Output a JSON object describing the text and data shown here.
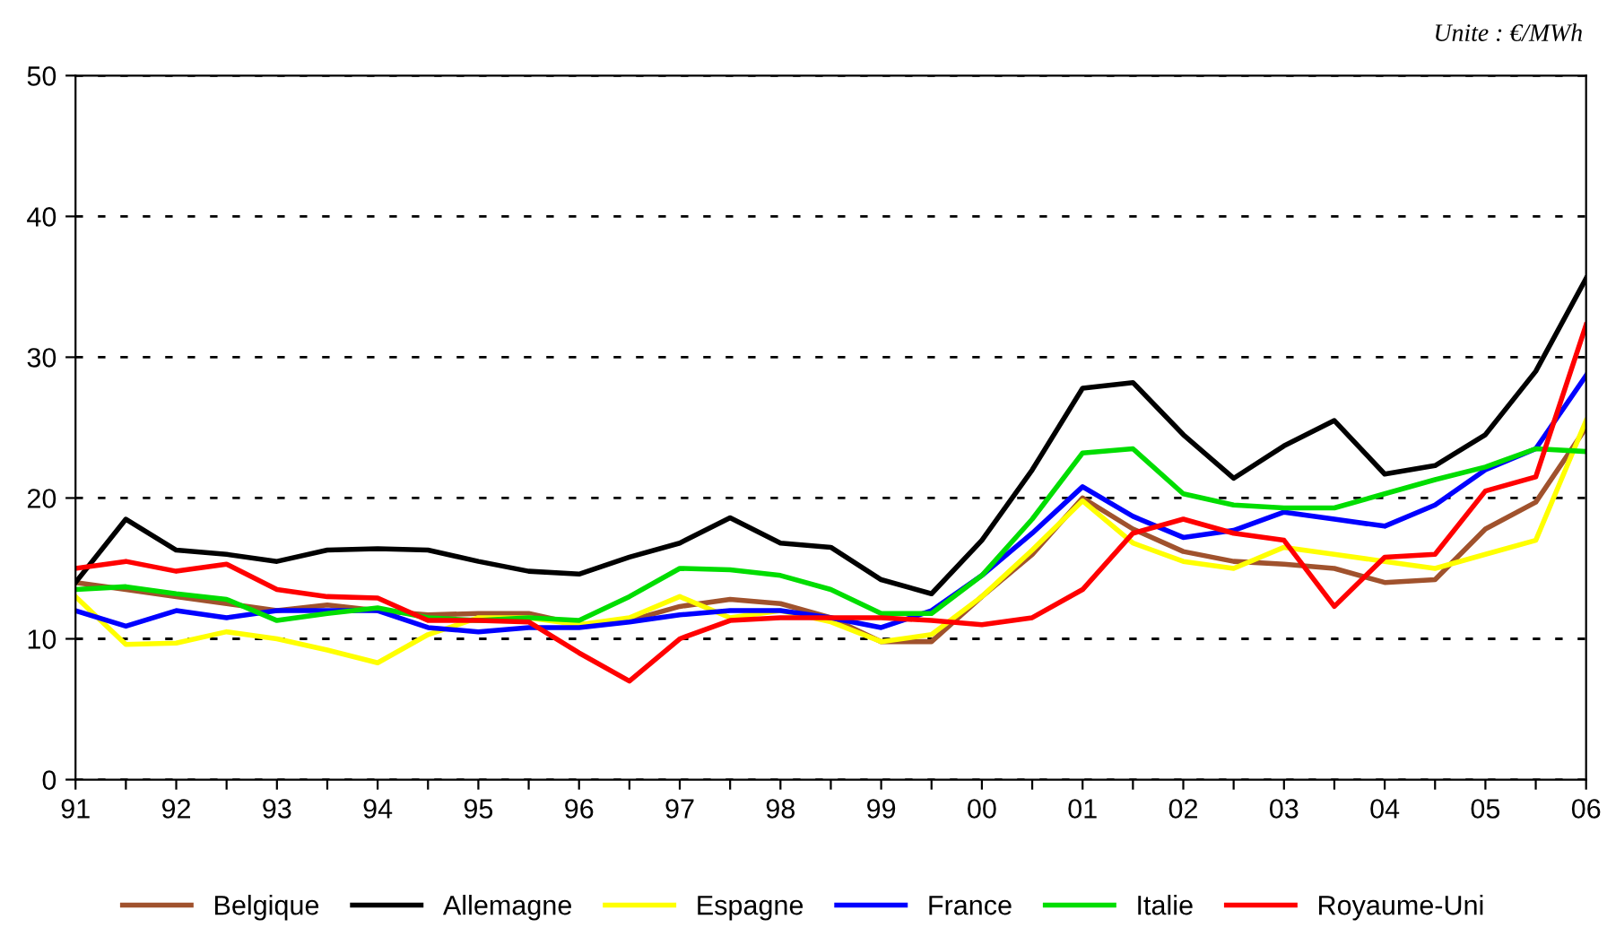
{
  "chart_data": {
    "type": "line",
    "annotations": [
      "Unite : €/MWh"
    ],
    "x": [
      1991,
      1991.5,
      1992,
      1992.5,
      1993,
      1993.5,
      1994,
      1994.5,
      1995,
      1995.5,
      1996,
      1996.5,
      1997,
      1997.5,
      1998,
      1998.5,
      1999,
      1999.5,
      2000,
      2000.5,
      2001,
      2001.5,
      2002,
      2002.5,
      2003,
      2003.5,
      2004,
      2004.5,
      2005,
      2005.5,
      2006
    ],
    "series": [
      {
        "name": "Belgique",
        "color": "#a0522d",
        "values": [
          14,
          13.5,
          13,
          12.5,
          12,
          12.4,
          12,
          11.7,
          11.8,
          11.8,
          11,
          11.3,
          12.3,
          12.8,
          12.5,
          11.5,
          9.8,
          9.8,
          13,
          16,
          20,
          17.8,
          16.2,
          15.5,
          15.3,
          15,
          14,
          14.2,
          17.8,
          19.7,
          25
        ]
      },
      {
        "name": "Allemagne",
        "color": "#000000",
        "values": [
          14,
          18.5,
          16.3,
          16,
          15.5,
          16.3,
          16.4,
          16.3,
          15.5,
          14.8,
          14.6,
          15.8,
          16.8,
          18.6,
          16.8,
          16.5,
          14.2,
          13.2,
          17,
          22,
          27.8,
          28.2,
          24.5,
          21.4,
          23.7,
          25.5,
          21.7,
          22.3,
          24.5,
          29,
          35.6
        ]
      },
      {
        "name": "Espagne",
        "color": "#ffff00",
        "values": [
          13,
          9.6,
          9.7,
          10.5,
          10,
          9.2,
          8.3,
          10.3,
          11.5,
          11.5,
          11,
          11.5,
          13,
          11.5,
          12,
          11.2,
          9.8,
          10.3,
          13,
          16.3,
          19.8,
          16.8,
          15.5,
          15,
          16.5,
          16,
          15.5,
          15,
          16,
          17,
          25.5
        ]
      },
      {
        "name": "France",
        "color": "#0000ff",
        "values": [
          12,
          10.9,
          12,
          11.5,
          12,
          12,
          12,
          10.8,
          10.5,
          10.8,
          10.8,
          11.2,
          11.7,
          12,
          12,
          11.5,
          10.8,
          12,
          14.5,
          17.5,
          20.8,
          18.7,
          17.2,
          17.7,
          19,
          18.5,
          18,
          19.5,
          22,
          23.5,
          28.7
        ]
      },
      {
        "name": "Italie",
        "color": "#00dd00",
        "values": [
          13.5,
          13.7,
          13.2,
          12.8,
          11.3,
          11.8,
          12.2,
          11.5,
          11.3,
          11.5,
          11.3,
          13,
          15,
          14.9,
          14.5,
          13.5,
          11.8,
          11.8,
          14.5,
          18.5,
          23.2,
          23.5,
          20.3,
          19.5,
          19.3,
          19.3,
          20.3,
          21.3,
          22.2,
          23.5,
          23.3
        ]
      },
      {
        "name": "Royaume-Uni",
        "color": "#ff0000",
        "values": [
          15,
          15.5,
          14.8,
          15.3,
          13.5,
          13,
          12.9,
          11.3,
          11.3,
          11.2,
          9,
          7,
          10,
          11.3,
          11.5,
          11.5,
          11.5,
          11.3,
          11,
          11.5,
          13.5,
          17.5,
          18.5,
          17.5,
          17,
          12.3,
          15.8,
          16,
          20.5,
          21.5,
          32.3
        ]
      }
    ],
    "xlim": [
      1991,
      2006
    ],
    "xticks": [
      {
        "value": 1991,
        "label": "91"
      },
      {
        "value": 1991.5,
        "label": null
      },
      {
        "value": 1992,
        "label": "92"
      },
      {
        "value": 1992.5,
        "label": null
      },
      {
        "value": 1993,
        "label": "93"
      },
      {
        "value": 1993.5,
        "label": null
      },
      {
        "value": 1994,
        "label": "94"
      },
      {
        "value": 1994.5,
        "label": null
      },
      {
        "value": 1995,
        "label": "95"
      },
      {
        "value": 1995.5,
        "label": null
      },
      {
        "value": 1996,
        "label": "96"
      },
      {
        "value": 1996.5,
        "label": null
      },
      {
        "value": 1997,
        "label": "97"
      },
      {
        "value": 1997.5,
        "label": null
      },
      {
        "value": 1998,
        "label": "98"
      },
      {
        "value": 1998.5,
        "label": null
      },
      {
        "value": 1999,
        "label": "99"
      },
      {
        "value": 1999.5,
        "label": null
      },
      {
        "value": 2000,
        "label": "00"
      },
      {
        "value": 2000.5,
        "label": null
      },
      {
        "value": 2001,
        "label": "01"
      },
      {
        "value": 2001.5,
        "label": null
      },
      {
        "value": 2002,
        "label": "02"
      },
      {
        "value": 2002.5,
        "label": null
      },
      {
        "value": 2003,
        "label": "03"
      },
      {
        "value": 2003.5,
        "label": null
      },
      {
        "value": 2004,
        "label": "04"
      },
      {
        "value": 2004.5,
        "label": null
      },
      {
        "value": 2005,
        "label": "05"
      },
      {
        "value": 2005.5,
        "label": null
      },
      {
        "value": 2006,
        "label": "06"
      }
    ],
    "ylim": [
      0,
      50
    ],
    "yticks": [
      0,
      10,
      20,
      30,
      40,
      50
    ],
    "grid": "y",
    "legend": "bottom",
    "marker": "none",
    "line_style": "solid"
  }
}
